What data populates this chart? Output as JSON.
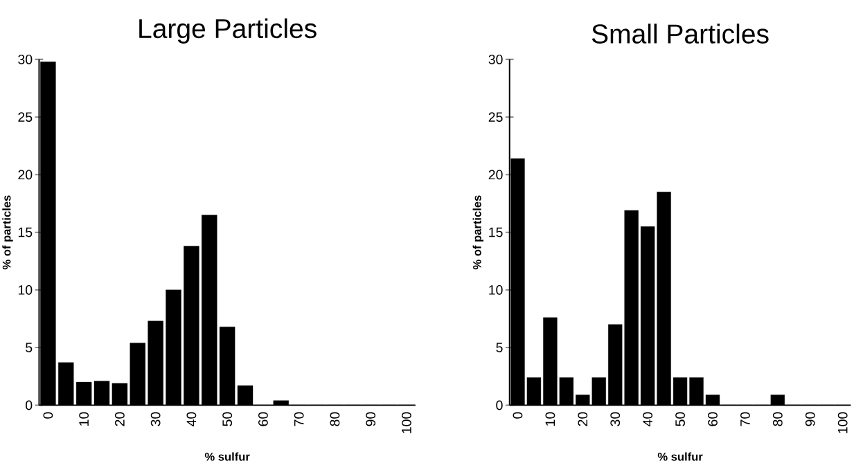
{
  "chart_data": [
    {
      "type": "bar",
      "title": "Large Particles",
      "xlabel": "% sulfur",
      "ylabel": "% of particles",
      "color": "#000000",
      "categories": [
        "0",
        null,
        "10",
        null,
        "20",
        null,
        "30",
        null,
        "40",
        null,
        "50",
        null,
        "60",
        null,
        "70",
        null,
        "80",
        null,
        "90",
        null,
        "100"
      ],
      "values": [
        29.8,
        3.7,
        2.0,
        2.1,
        1.9,
        5.4,
        7.3,
        10.0,
        13.8,
        16.5,
        6.8,
        1.7,
        0,
        0.4,
        0,
        0,
        0,
        0,
        0,
        0,
        0
      ],
      "ylim": [
        0,
        30
      ],
      "yticks": [
        0,
        5,
        10,
        15,
        20,
        25,
        30
      ]
    },
    {
      "type": "bar",
      "title": "Small Particles",
      "xlabel": "% sulfur",
      "ylabel": "% of particles",
      "color": "#000000",
      "categories": [
        "0",
        null,
        "10",
        null,
        "20",
        null,
        "30",
        null,
        "40",
        null,
        "50",
        null,
        "60",
        null,
        "70",
        null,
        "80",
        null,
        "90",
        null,
        "100"
      ],
      "values": [
        21.4,
        2.4,
        7.6,
        2.4,
        0.9,
        2.4,
        7.0,
        16.9,
        15.5,
        18.5,
        2.4,
        2.4,
        0.9,
        0,
        0,
        0,
        0.9,
        0,
        0,
        0,
        0
      ],
      "ylim": [
        0,
        30
      ],
      "yticks": [
        0,
        5,
        10,
        15,
        20,
        25,
        30
      ]
    }
  ]
}
